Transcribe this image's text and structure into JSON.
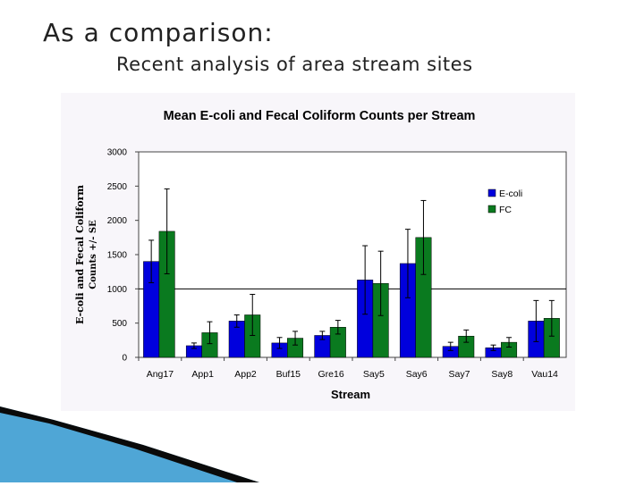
{
  "slide": {
    "title": "As a comparison:",
    "subtitle": "Recent analysis of area stream sites"
  },
  "chart_data": {
    "type": "bar",
    "title": "Mean E-coli and Fecal Coliform Counts per Stream",
    "xlabel": "Stream",
    "ylabel_line1": "E-coli and Fecal Coliform",
    "ylabel_line2": "Counts +/- SE",
    "ylim": [
      0,
      3000
    ],
    "yticks": [
      0,
      500,
      1000,
      1500,
      2000,
      2500,
      3000
    ],
    "reference_line": 1000,
    "categories": [
      "Ang17",
      "App1",
      "App2",
      "Buf15",
      "Gre16",
      "Say5",
      "Say6",
      "Say7",
      "Say8",
      "Vau14"
    ],
    "series": [
      {
        "name": "E-coli",
        "color": "#0000dd",
        "values": [
          1400,
          170,
          530,
          210,
          320,
          1130,
          1370,
          160,
          140,
          530
        ],
        "errors": [
          310,
          40,
          90,
          80,
          60,
          500,
          500,
          60,
          40,
          300
        ]
      },
      {
        "name": "FC",
        "color": "#0a7a1f",
        "values": [
          1840,
          360,
          620,
          280,
          440,
          1080,
          1750,
          310,
          220,
          570
        ],
        "errors": [
          620,
          160,
          300,
          100,
          100,
          470,
          540,
          90,
          70,
          260
        ]
      }
    ],
    "legend_placement": "top-right",
    "grid": false
  }
}
